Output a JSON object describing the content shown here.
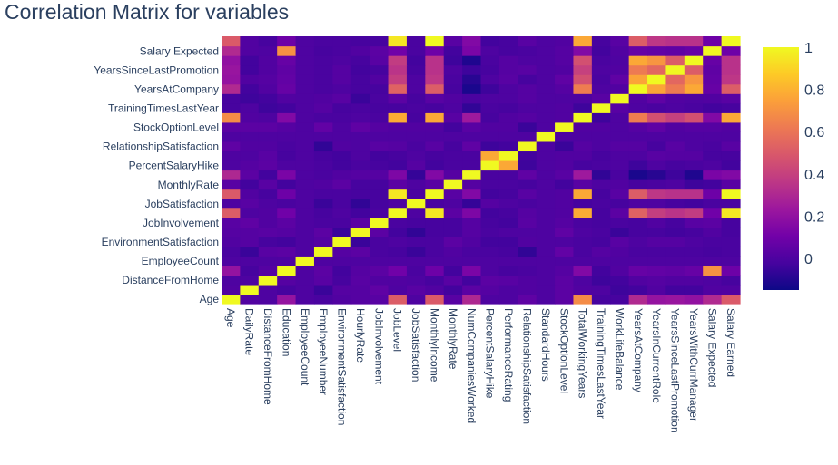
{
  "chart_data": {
    "type": "heatmap",
    "title": "Correlation Matrix for variables",
    "x_labels": [
      "Age",
      "DailyRate",
      "DistanceFromHome",
      "Education",
      "EmployeeCount",
      "EmployeeNumber",
      "EnvironmentSatisfaction",
      "HourlyRate",
      "JobInvolvement",
      "JobLevel",
      "JobSatisfaction",
      "MonthlyIncome",
      "MonthlyRate",
      "NumCompaniesWorked",
      "PercentSalaryHike",
      "PerformanceRating",
      "RelationshipSatisfaction",
      "StandardHours",
      "StockOptionLevel",
      "TotalWorkingYears",
      "TrainingTimesLastYear",
      "WorkLifeBalance",
      "YearsAtCompany",
      "YearsInCurrentRole",
      "YearsSinceLastPromotion",
      "YearsWithCurrManager",
      "Salary Expected",
      "Salary Earned"
    ],
    "y_tick_labels": [
      "Age",
      "DistanceFromHome",
      "EmployeeCount",
      "EnvironmentSatisfaction",
      "JobInvolvement",
      "JobSatisfaction",
      "MonthlyRate",
      "PercentSalaryHike",
      "RelationshipSatisfaction",
      "StockOptionLevel",
      "TrainingTimesLastYear",
      "YearsAtCompany",
      "YearsSinceLastPromotion",
      "Salary Expected"
    ],
    "colorbar": {
      "min": -0.15,
      "max": 1.0,
      "ticks": [
        "1",
        "0.8",
        "0.6",
        "0.4",
        "0.2",
        "0"
      ],
      "tick_values": [
        1,
        0.8,
        0.6,
        0.4,
        0.2,
        0
      ]
    },
    "colorscale": [
      "#0d0887",
      "#46039f",
      "#7201a8",
      "#9c179e",
      "#bd3786",
      "#d8576b",
      "#ed7953",
      "#fb9f3a",
      "#fdca26",
      "#f0f921"
    ],
    "z": [
      [
        1.0,
        0.01,
        0.0,
        0.21,
        0.0,
        -0.01,
        0.01,
        0.02,
        0.03,
        0.51,
        0.0,
        0.5,
        0.03,
        0.3,
        0.0,
        0.0,
        0.05,
        0.0,
        0.04,
        0.68,
        -0.02,
        -0.02,
        0.31,
        0.21,
        0.22,
        0.2,
        0.31,
        0.5
      ],
      [
        0.01,
        1.0,
        0.0,
        -0.02,
        0.0,
        -0.05,
        0.02,
        0.02,
        0.05,
        0.0,
        0.03,
        0.01,
        -0.03,
        0.04,
        0.02,
        0.0,
        0.01,
        0.0,
        0.04,
        0.01,
        0.0,
        -0.04,
        -0.03,
        0.01,
        -0.03,
        -0.03,
        0.01,
        0.01
      ],
      [
        0.0,
        0.0,
        1.0,
        0.02,
        0.0,
        0.03,
        -0.02,
        0.03,
        0.01,
        0.01,
        0.0,
        -0.02,
        0.03,
        -0.03,
        0.04,
        0.03,
        0.01,
        0.0,
        0.04,
        0.0,
        -0.04,
        -0.03,
        0.01,
        0.02,
        0.01,
        0.01,
        0.0,
        -0.02
      ],
      [
        0.21,
        -0.02,
        0.02,
        1.0,
        0.0,
        0.04,
        -0.03,
        0.02,
        0.04,
        0.1,
        -0.01,
        0.09,
        -0.03,
        0.13,
        0.0,
        -0.02,
        -0.01,
        0.0,
        0.02,
        0.15,
        -0.03,
        0.01,
        0.07,
        0.06,
        0.05,
        0.07,
        0.7,
        0.09
      ],
      [
        0.0,
        0.0,
        0.0,
        0.0,
        1.0,
        0.0,
        0.0,
        0.0,
        0.0,
        0.0,
        0.0,
        0.0,
        0.0,
        0.0,
        0.0,
        0.0,
        0.0,
        0.0,
        0.0,
        0.0,
        0.0,
        0.0,
        0.0,
        0.0,
        0.0,
        0.0,
        0.0,
        0.0
      ],
      [
        -0.01,
        -0.05,
        0.03,
        0.04,
        0.0,
        1.0,
        0.02,
        0.04,
        -0.01,
        -0.02,
        -0.05,
        -0.01,
        0.01,
        -0.01,
        -0.01,
        -0.02,
        -0.07,
        0.0,
        0.06,
        -0.01,
        0.02,
        0.01,
        -0.01,
        -0.01,
        -0.01,
        -0.01,
        -0.02,
        -0.01
      ],
      [
        0.01,
        0.02,
        -0.02,
        -0.03,
        0.0,
        0.02,
        1.0,
        -0.05,
        -0.01,
        0.0,
        -0.01,
        -0.01,
        0.04,
        0.01,
        -0.03,
        -0.03,
        0.01,
        0.0,
        0.0,
        -0.01,
        -0.02,
        0.03,
        0.0,
        0.02,
        0.02,
        0.0,
        -0.01,
        -0.01
      ],
      [
        0.02,
        0.02,
        0.03,
        0.02,
        0.0,
        0.04,
        -0.05,
        1.0,
        0.04,
        -0.03,
        -0.07,
        -0.02,
        -0.02,
        0.02,
        -0.01,
        0.0,
        0.0,
        0.0,
        0.05,
        0.0,
        -0.01,
        -0.05,
        -0.02,
        -0.02,
        -0.03,
        -0.02,
        0.01,
        -0.02
      ],
      [
        0.03,
        0.05,
        0.01,
        0.04,
        0.0,
        -0.01,
        -0.01,
        0.04,
        1.0,
        -0.01,
        -0.02,
        -0.02,
        -0.02,
        0.02,
        -0.02,
        -0.03,
        0.03,
        0.0,
        0.02,
        -0.01,
        -0.02,
        -0.01,
        -0.02,
        0.01,
        -0.02,
        0.03,
        0.04,
        -0.02
      ],
      [
        0.51,
        0.0,
        0.01,
        0.1,
        0.0,
        -0.02,
        0.0,
        -0.03,
        -0.01,
        1.0,
        0.0,
        0.95,
        0.04,
        0.14,
        -0.03,
        -0.02,
        0.02,
        0.0,
        0.01,
        0.78,
        -0.02,
        0.04,
        0.53,
        0.39,
        0.35,
        0.38,
        0.1,
        0.95
      ],
      [
        0.0,
        0.03,
        0.0,
        -0.01,
        0.0,
        -0.05,
        -0.01,
        -0.07,
        -0.02,
        0.0,
        1.0,
        -0.01,
        0.0,
        -0.06,
        0.02,
        0.0,
        -0.01,
        0.0,
        0.01,
        -0.02,
        -0.01,
        -0.02,
        0.0,
        0.0,
        -0.02,
        -0.03,
        -0.01,
        -0.01
      ],
      [
        0.5,
        0.01,
        -0.02,
        0.09,
        0.0,
        -0.01,
        -0.01,
        -0.02,
        -0.02,
        0.95,
        -0.01,
        1.0,
        0.03,
        0.15,
        -0.03,
        -0.02,
        0.03,
        0.0,
        0.01,
        0.77,
        -0.02,
        0.03,
        0.51,
        0.36,
        0.34,
        0.34,
        0.09,
        1.0
      ],
      [
        0.03,
        -0.03,
        0.03,
        -0.03,
        0.0,
        0.01,
        0.04,
        -0.02,
        -0.02,
        0.04,
        0.0,
        0.03,
        1.0,
        0.02,
        -0.01,
        -0.01,
        -0.02,
        0.0,
        -0.03,
        0.03,
        0.0,
        0.01,
        -0.02,
        -0.01,
        0.0,
        -0.04,
        -0.03,
        0.03
      ],
      [
        0.3,
        0.04,
        -0.03,
        0.13,
        0.0,
        -0.01,
        0.01,
        0.02,
        0.02,
        0.14,
        -0.06,
        0.15,
        0.02,
        1.0,
        -0.01,
        -0.01,
        0.05,
        0.0,
        0.03,
        0.24,
        -0.07,
        -0.01,
        -0.12,
        -0.09,
        -0.04,
        -0.11,
        0.13,
        0.15
      ],
      [
        0.0,
        0.02,
        0.04,
        0.0,
        0.0,
        -0.01,
        -0.03,
        -0.01,
        -0.02,
        -0.03,
        0.02,
        -0.03,
        -0.01,
        -0.01,
        1.0,
        0.77,
        -0.04,
        0.0,
        0.01,
        -0.02,
        -0.01,
        0.0,
        -0.04,
        0.0,
        -0.02,
        -0.01,
        0.0,
        -0.03
      ],
      [
        0.0,
        0.0,
        0.03,
        -0.02,
        0.0,
        -0.02,
        -0.03,
        0.0,
        -0.03,
        -0.02,
        0.0,
        -0.02,
        -0.01,
        -0.01,
        0.77,
        1.0,
        -0.03,
        0.0,
        0.01,
        0.01,
        -0.02,
        0.0,
        0.0,
        0.03,
        0.02,
        0.02,
        -0.02,
        -0.02
      ],
      [
        0.05,
        0.01,
        0.01,
        -0.01,
        0.0,
        -0.07,
        0.01,
        0.0,
        0.03,
        0.02,
        -0.01,
        0.03,
        -0.02,
        0.05,
        -0.04,
        -0.03,
        1.0,
        0.0,
        -0.05,
        0.02,
        0.0,
        0.02,
        0.02,
        -0.02,
        0.03,
        0.0,
        -0.01,
        0.03
      ],
      [
        0.0,
        0.0,
        0.0,
        0.0,
        0.0,
        0.0,
        0.0,
        0.0,
        0.0,
        0.0,
        0.0,
        0.0,
        0.0,
        0.0,
        0.0,
        0.0,
        0.0,
        1.0,
        0.0,
        0.0,
        0.0,
        0.0,
        0.0,
        0.0,
        0.0,
        0.0,
        0.0,
        0.0
      ],
      [
        0.04,
        0.04,
        0.04,
        0.02,
        0.0,
        0.06,
        0.0,
        0.05,
        0.02,
        0.01,
        0.01,
        0.01,
        -0.03,
        0.03,
        0.01,
        0.01,
        -0.05,
        0.0,
        1.0,
        0.01,
        0.01,
        0.0,
        0.02,
        0.05,
        0.01,
        0.02,
        0.02,
        0.01
      ],
      [
        0.68,
        0.01,
        0.0,
        0.15,
        0.0,
        -0.01,
        -0.01,
        0.0,
        -0.01,
        0.78,
        -0.02,
        0.77,
        0.03,
        0.24,
        -0.02,
        0.01,
        0.02,
        0.0,
        0.01,
        1.0,
        -0.04,
        0.0,
        0.63,
        0.46,
        0.4,
        0.46,
        0.15,
        0.77
      ],
      [
        -0.02,
        0.0,
        -0.04,
        -0.03,
        0.0,
        0.02,
        -0.02,
        -0.01,
        -0.02,
        -0.02,
        -0.01,
        -0.02,
        0.0,
        -0.07,
        -0.01,
        -0.02,
        0.0,
        0.0,
        0.01,
        -0.04,
        1.0,
        0.03,
        0.0,
        -0.01,
        0.0,
        -0.01,
        -0.03,
        -0.02
      ],
      [
        -0.02,
        -0.04,
        -0.03,
        0.01,
        0.0,
        0.01,
        0.03,
        -0.05,
        -0.01,
        0.04,
        -0.02,
        0.03,
        0.01,
        -0.01,
        0.0,
        0.0,
        0.02,
        0.0,
        0.0,
        0.0,
        0.03,
        1.0,
        0.01,
        0.05,
        0.01,
        0.0,
        0.01,
        0.03
      ],
      [
        0.31,
        -0.03,
        0.01,
        0.07,
        0.0,
        -0.01,
        0.0,
        -0.02,
        -0.02,
        0.53,
        0.0,
        0.51,
        -0.02,
        -0.12,
        -0.04,
        0.0,
        0.02,
        0.0,
        0.02,
        0.63,
        0.0,
        0.01,
        1.0,
        0.76,
        0.62,
        0.77,
        0.07,
        0.51
      ],
      [
        0.21,
        0.01,
        0.02,
        0.06,
        0.0,
        -0.01,
        0.02,
        -0.02,
        0.01,
        0.39,
        0.0,
        0.36,
        -0.01,
        -0.09,
        0.0,
        0.03,
        -0.02,
        0.0,
        0.05,
        0.46,
        -0.01,
        0.05,
        0.76,
        1.0,
        0.55,
        0.71,
        0.06,
        0.36
      ],
      [
        0.22,
        -0.03,
        0.01,
        0.05,
        0.0,
        -0.01,
        0.02,
        -0.03,
        -0.02,
        0.35,
        -0.02,
        0.34,
        0.0,
        -0.04,
        -0.02,
        0.02,
        0.03,
        0.0,
        0.01,
        0.4,
        0.0,
        0.01,
        0.62,
        0.55,
        1.0,
        0.51,
        0.05,
        0.34
      ],
      [
        0.2,
        -0.03,
        0.01,
        0.07,
        0.0,
        -0.01,
        0.0,
        -0.02,
        0.03,
        0.38,
        -0.03,
        0.34,
        -0.04,
        -0.11,
        -0.01,
        0.02,
        0.0,
        0.0,
        0.02,
        0.46,
        -0.01,
        0.0,
        0.77,
        0.71,
        0.51,
        1.0,
        0.07,
        0.34
      ],
      [
        0.31,
        0.01,
        0.0,
        0.7,
        0.0,
        -0.02,
        -0.01,
        0.01,
        0.04,
        0.1,
        -0.01,
        0.09,
        -0.03,
        0.13,
        0.0,
        -0.02,
        -0.01,
        0.0,
        0.02,
        0.15,
        -0.03,
        0.01,
        0.07,
        0.06,
        0.05,
        0.07,
        1.0,
        0.09
      ],
      [
        0.5,
        0.01,
        -0.02,
        0.09,
        0.0,
        -0.01,
        -0.01,
        -0.02,
        -0.02,
        0.95,
        -0.01,
        1.0,
        0.03,
        0.15,
        -0.03,
        -0.02,
        0.03,
        0.0,
        0.01,
        0.77,
        -0.02,
        0.03,
        0.51,
        0.36,
        0.34,
        0.34,
        0.09,
        1.0
      ]
    ]
  }
}
